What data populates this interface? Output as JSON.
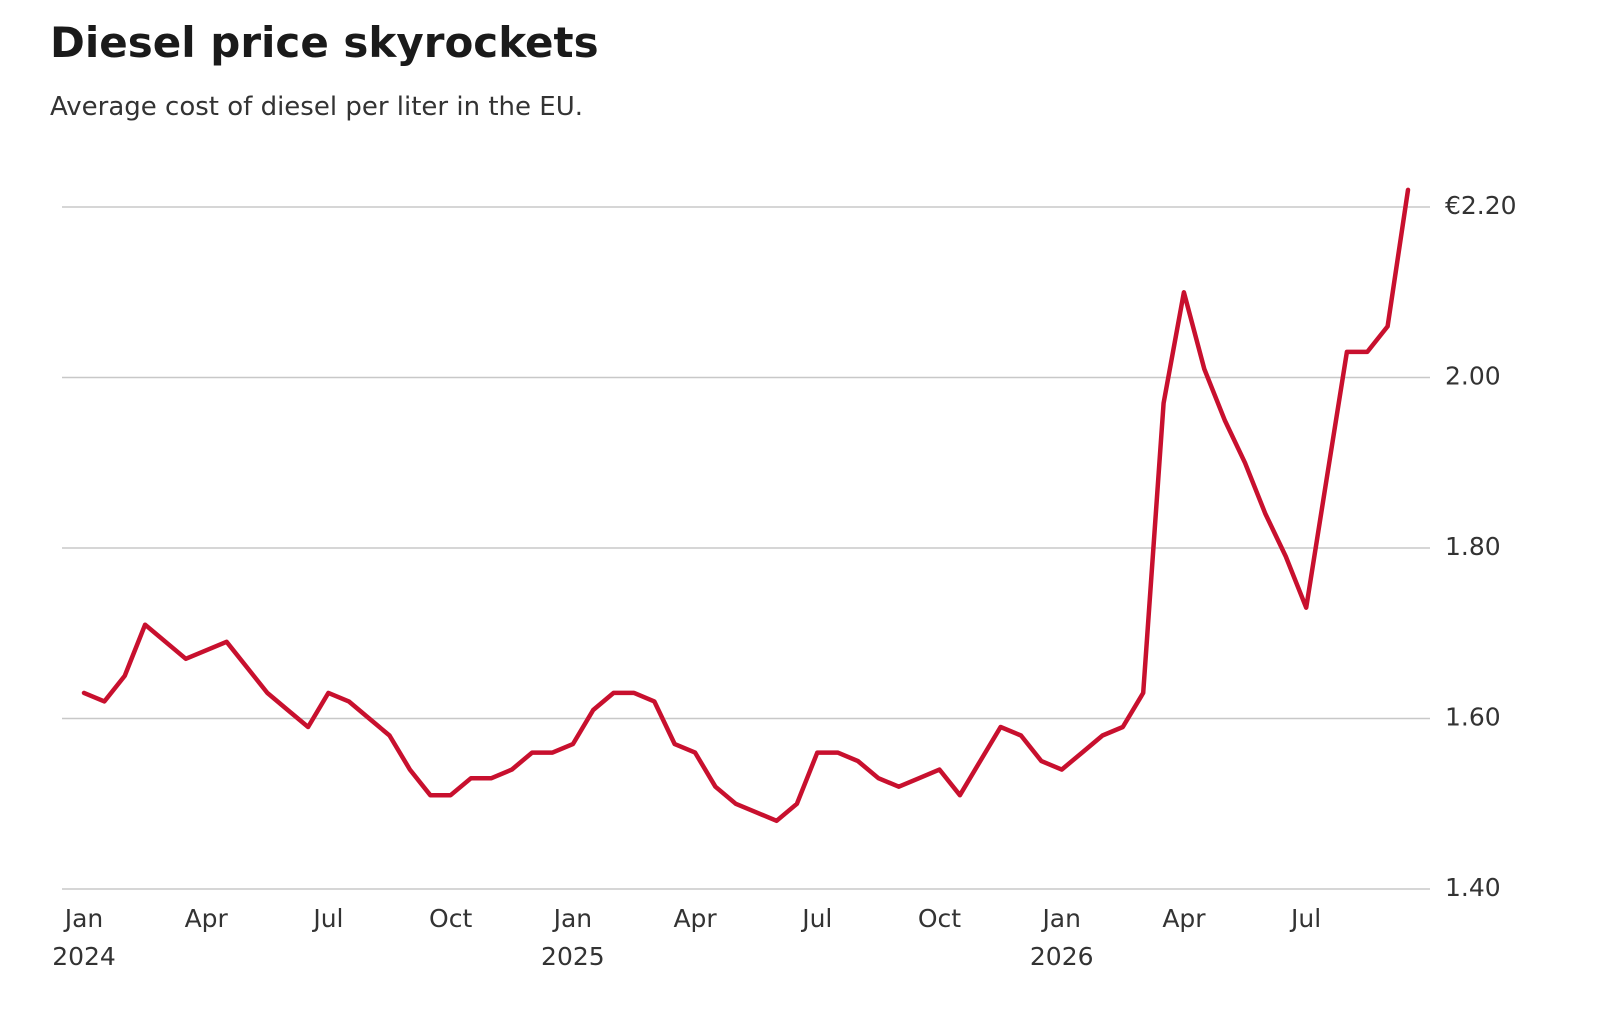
{
  "chart_data": {
    "type": "line",
    "title": "Diesel price skyrockets",
    "subtitle": "Average cost of diesel per liter in the EU.",
    "categories": [
      "Jan 2024",
      null,
      null,
      null,
      null,
      null,
      "Apr",
      null,
      null,
      null,
      null,
      null,
      "Jul",
      null,
      null,
      null,
      null,
      null,
      "Oct",
      null,
      null,
      null,
      null,
      null,
      "Jan 2025",
      null,
      null,
      null,
      null,
      null,
      "Apr",
      null,
      null,
      null,
      null,
      null,
      "Jul",
      null,
      null,
      null,
      null,
      null,
      "Oct",
      null,
      null,
      null,
      null,
      null,
      "Jan 2026",
      null,
      null,
      null,
      null,
      null,
      "Apr",
      null,
      null,
      null,
      null,
      null,
      "Jul",
      null,
      null,
      null,
      null,
      null
    ],
    "series": [
      {
        "name": "Diesel",
        "color": "#c8102e",
        "values": [
          1.63,
          1.62,
          1.65,
          1.71,
          1.69,
          1.67,
          1.68,
          1.69,
          1.66,
          1.63,
          1.61,
          1.59,
          1.63,
          1.62,
          1.6,
          1.58,
          1.54,
          1.51,
          1.51,
          1.53,
          1.53,
          1.54,
          1.56,
          1.56,
          1.57,
          1.61,
          1.63,
          1.63,
          1.62,
          1.57,
          1.56,
          1.52,
          1.5,
          1.49,
          1.48,
          1.5,
          1.56,
          1.56,
          1.55,
          1.53,
          1.52,
          1.53,
          1.54,
          1.51,
          1.55,
          1.59,
          1.58,
          1.55,
          1.54,
          1.56,
          1.58,
          1.59,
          1.63,
          1.97,
          2.1,
          2.01,
          1.95,
          1.9,
          1.84,
          1.79,
          1.73,
          1.88,
          2.03,
          2.03,
          2.06,
          2.22
        ]
      }
    ],
    "ylim": [
      1.4,
      2.25
    ],
    "yticks": [
      {
        "value": 1.4,
        "label": "1.40"
      },
      {
        "value": 1.6,
        "label": "1.60"
      },
      {
        "value": 1.8,
        "label": "1.80"
      },
      {
        "value": 2.0,
        "label": "2.00"
      },
      {
        "value": 2.2,
        "label": "€2.20"
      }
    ],
    "grid": true
  }
}
